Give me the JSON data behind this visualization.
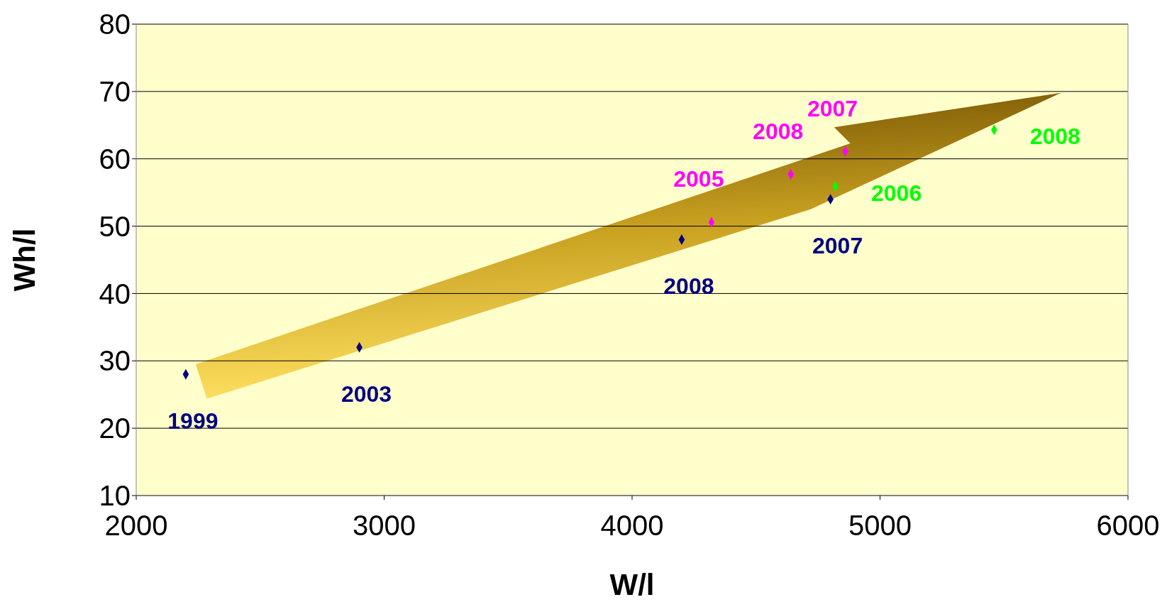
{
  "chart_data": {
    "type": "scatter",
    "xlabel": "W/l",
    "ylabel": "Wh/l",
    "xlim": [
      2000,
      6000
    ],
    "xticks": [
      2000,
      3000,
      4000,
      5000,
      6000
    ],
    "ylim": [
      10,
      80
    ],
    "yticks": [
      10,
      20,
      30,
      40,
      50,
      60,
      70,
      80
    ],
    "grid": "y",
    "marker": "diamond",
    "series": [
      {
        "color": "#000080",
        "x": [
          2200,
          2900,
          4200,
          4800
        ],
        "values": [
          28,
          32,
          48,
          54
        ]
      },
      {
        "color": "#ff00ff",
        "x": [
          4320,
          4640,
          4860
        ],
        "values": [
          50.6,
          57.7,
          61.1
        ]
      },
      {
        "color": "#00ff00",
        "x": [
          4820,
          5460
        ],
        "values": [
          55.9,
          64.3
        ]
      }
    ],
    "annotations": [
      {
        "text": "1999",
        "x": 2200,
        "y": 28
      },
      {
        "text": "2003",
        "x": 2900,
        "y": 32
      },
      {
        "text": "2008",
        "x": 4200,
        "y": 48
      },
      {
        "text": "2007",
        "x": 4800,
        "y": 54
      },
      {
        "text": "2005",
        "x": 4320,
        "y": 50.6
      },
      {
        "text": "2008",
        "x": 4640,
        "y": 57.7
      },
      {
        "text": "2007",
        "x": 4860,
        "y": 61.1
      },
      {
        "text": "2006",
        "x": 4820,
        "y": 55.9
      },
      {
        "text": "2008",
        "x": 5460,
        "y": 64.3
      }
    ]
  }
}
